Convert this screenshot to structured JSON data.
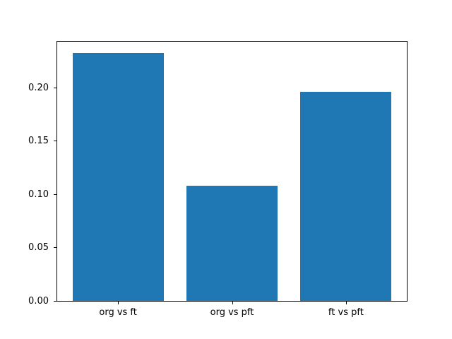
{
  "chart_data": {
    "type": "bar",
    "categories": [
      "org vs ft",
      "org vs pft",
      "ft vs pft"
    ],
    "values": [
      0.232,
      0.108,
      0.196
    ],
    "title": "",
    "xlabel": "",
    "ylabel": "",
    "ylim": [
      0,
      0.244
    ],
    "xlim": [
      -0.54,
      2.54
    ],
    "yticks": [
      0.0,
      0.05,
      0.1,
      0.15,
      0.2
    ],
    "ytick_labels": [
      "0.00",
      "0.05",
      "0.10",
      "0.15",
      "0.20"
    ],
    "bar_width_fraction": 0.8,
    "bar_color": "#1f77b4",
    "frame_color": "#000000",
    "background_color": "#ffffff",
    "grid": false,
    "legend": null
  }
}
